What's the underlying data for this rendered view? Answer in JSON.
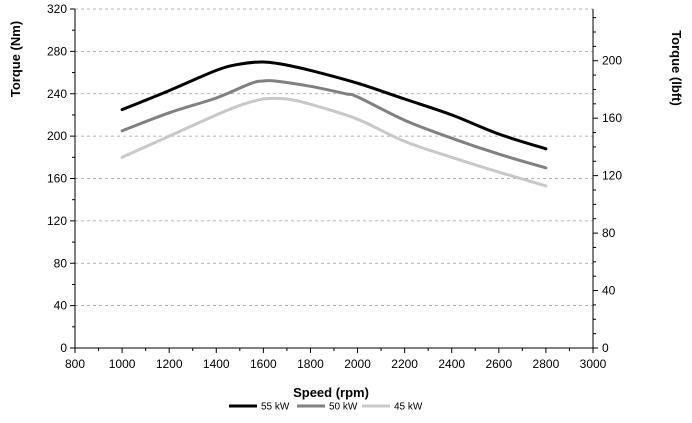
{
  "chart_data": {
    "type": "line",
    "title": "",
    "xlabel": "Speed (rpm)",
    "ylabel": "Torque (Nm)",
    "ylabel_right": "Torque (lbft)",
    "xlim": [
      800,
      3000
    ],
    "ylim": [
      0,
      320
    ],
    "ylim_right": [
      0,
      236.02
    ],
    "x_ticks": [
      800,
      1000,
      1200,
      1400,
      1600,
      1800,
      2000,
      2200,
      2400,
      2600,
      2800,
      3000
    ],
    "y_ticks": [
      0,
      40,
      80,
      120,
      160,
      200,
      240,
      280,
      320
    ],
    "y_ticks_right": [
      0,
      40,
      80,
      120,
      160,
      200
    ],
    "grid": "horizontal dashed",
    "legend_position": "bottom",
    "series": [
      {
        "name": "55 kW",
        "color": "#000000",
        "x": [
          1000,
          1200,
          1400,
          1500,
          1600,
          1700,
          1800,
          2000,
          2200,
          2400,
          2600,
          2800
        ],
        "values": [
          225,
          243,
          262,
          268,
          270,
          267,
          262,
          250,
          235,
          220,
          202,
          188
        ]
      },
      {
        "name": "50 kW",
        "color": "#808080",
        "x": [
          1000,
          1200,
          1400,
          1550,
          1600,
          1650,
          1800,
          1950,
          2000,
          2200,
          2400,
          2600,
          2800
        ],
        "values": [
          205,
          222,
          236,
          250,
          252,
          252,
          247,
          240,
          237,
          215,
          198,
          183,
          170
        ]
      },
      {
        "name": "45 kW",
        "color": "#c8c8c8",
        "x": [
          1000,
          1200,
          1400,
          1500,
          1600,
          1700,
          1800,
          2000,
          2200,
          2400,
          2600,
          2800
        ],
        "values": [
          180,
          200,
          220,
          229,
          235,
          235,
          230,
          216,
          195,
          180,
          166,
          153
        ]
      }
    ]
  }
}
